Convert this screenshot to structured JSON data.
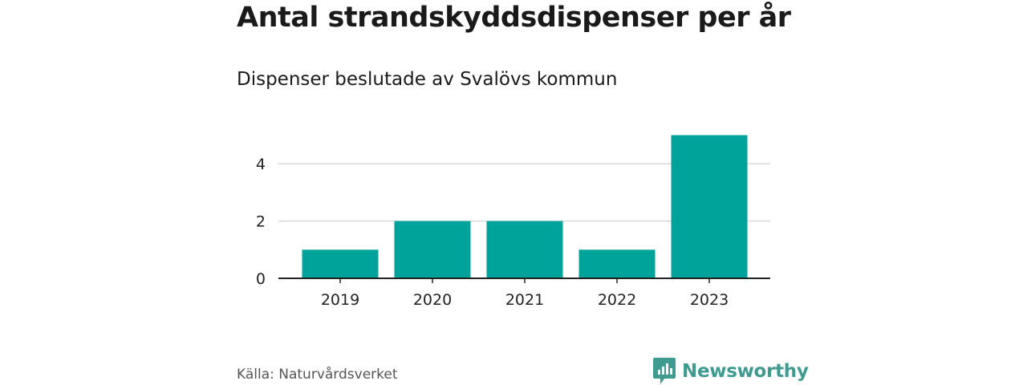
{
  "header": {
    "title": "Antal strandskyddsdispenser per år",
    "subtitle": "Dispenser beslutade av Svalövs kommun"
  },
  "footer": {
    "source": "Källa: Naturvårdsverket",
    "brand": "Newsworthy",
    "brand_icon": "bar-chart-bubble-icon"
  },
  "colors": {
    "bar": "#00a39a",
    "brand": "#3f9a8f",
    "grid": "#d9d9d9",
    "axis": "#222222"
  },
  "chart_data": {
    "type": "bar",
    "title": "Antal strandskyddsdispenser per år",
    "subtitle": "Dispenser beslutade av Svalövs kommun",
    "categories": [
      "2019",
      "2020",
      "2021",
      "2022",
      "2023"
    ],
    "values": [
      1,
      2,
      2,
      1,
      5
    ],
    "yticks": [
      "0",
      "2",
      "4"
    ],
    "ylim": [
      0,
      5
    ],
    "xlabel": "",
    "ylabel": "",
    "grid": true
  }
}
